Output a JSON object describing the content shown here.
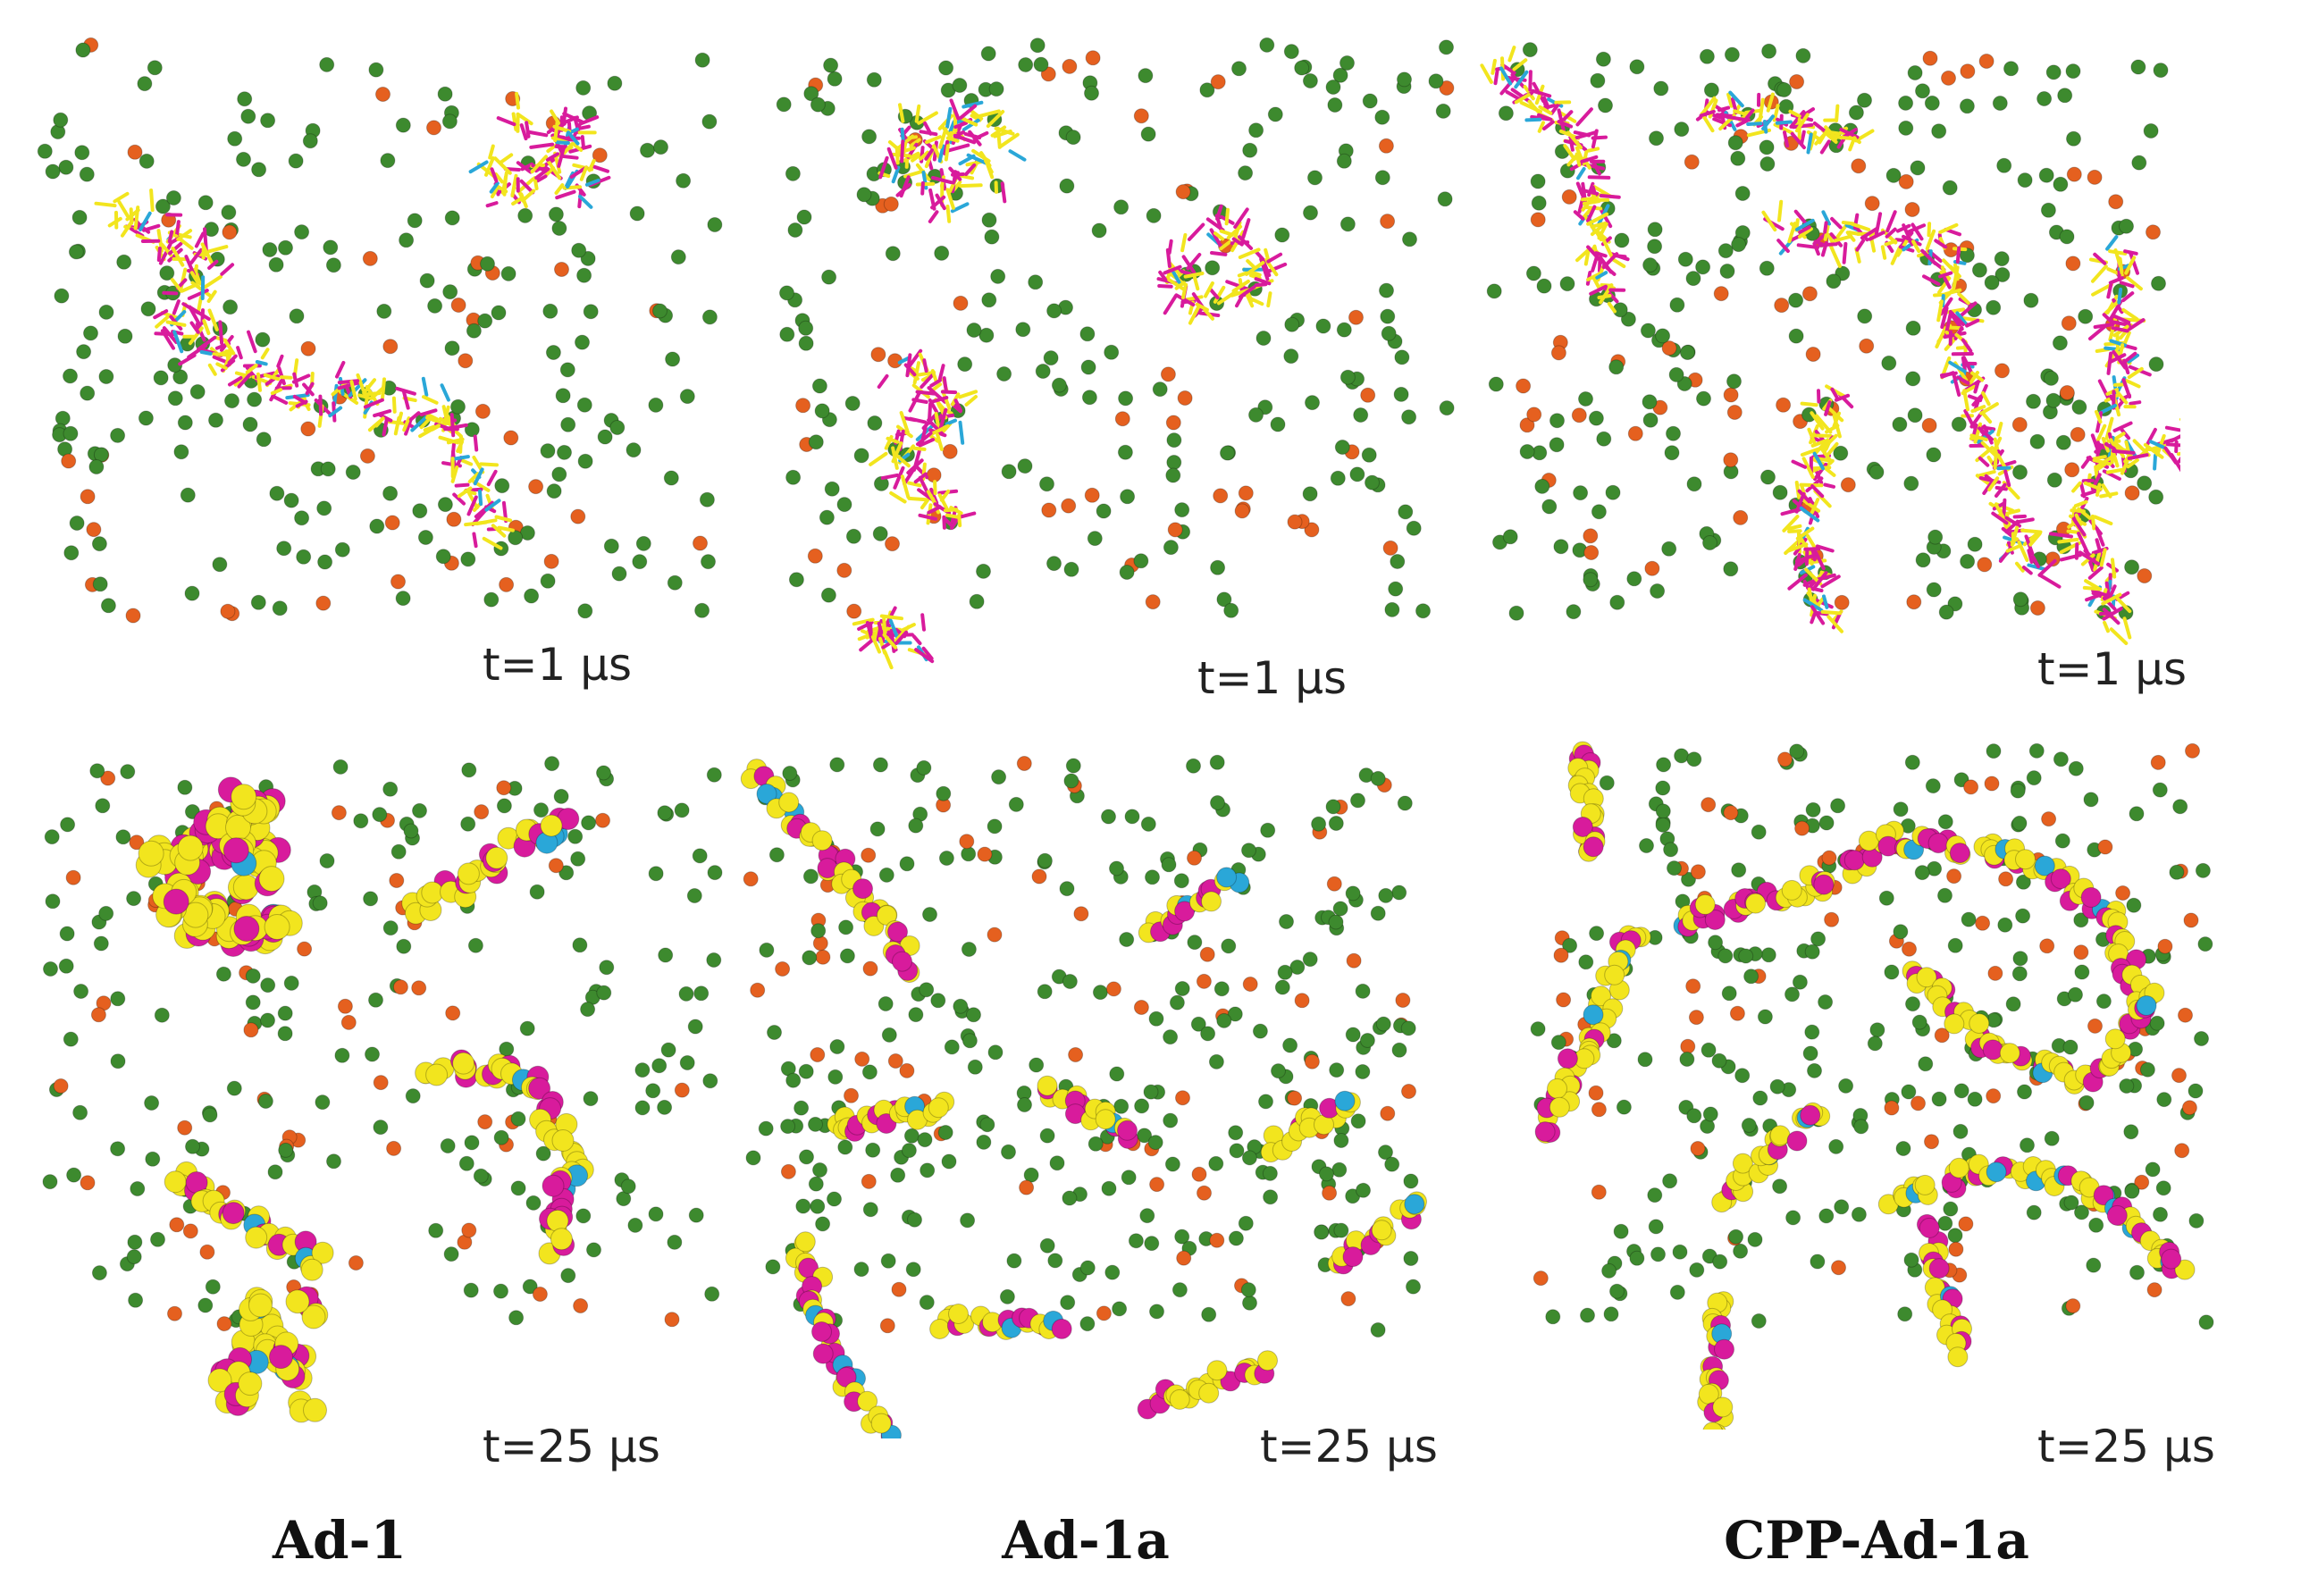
{
  "colors": {
    "water": "#3d8a2e",
    "ion": "#e5601f",
    "tail": "#f2e51e",
    "head": "#d81b9c",
    "terminal": "#2aa7d8"
  },
  "panels": [
    {
      "id": "ad1-1us",
      "column": "Ad-1",
      "time_label": "t=1 μs",
      "representation": "sticks",
      "arrangement": "large-cluster"
    },
    {
      "id": "ad1a-1us",
      "column": "Ad-1a",
      "time_label": "t=1 μs",
      "representation": "sticks",
      "arrangement": "several-clusters"
    },
    {
      "id": "cppad1a-1us",
      "column": "CPP-Ad-1a",
      "time_label": "t=1 μs",
      "representation": "sticks",
      "arrangement": "branching-strands"
    },
    {
      "id": "ad1-25us",
      "column": "Ad-1",
      "time_label": "t=25 μs",
      "representation": "spheres",
      "arrangement": "compact-aggregates"
    },
    {
      "id": "ad1a-25us",
      "column": "Ad-1a",
      "time_label": "t=25 μs",
      "representation": "spheres",
      "arrangement": "short-fibers"
    },
    {
      "id": "cppad1a-25us",
      "column": "CPP-Ad-1a",
      "time_label": "t=25 μs",
      "representation": "spheres",
      "arrangement": "long-fibers"
    }
  ],
  "column_labels": [
    "Ad-1",
    "Ad-1a",
    "CPP-Ad-1a"
  ]
}
